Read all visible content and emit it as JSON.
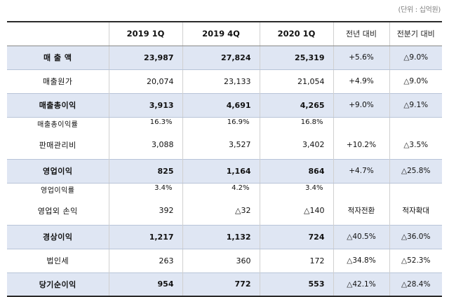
{
  "unit_note": "(단위 : 십억원)",
  "header": [
    "",
    "2019 1Q",
    "2019 4Q",
    "2020 1Q",
    "전년 대비",
    "전분기 대비"
  ],
  "rows": [
    {
      "label": "매 출 액",
      "v2019q1": "23,987",
      "v2019q4": "27,824",
      "v2020q1": "25,319",
      "yoy": "+5.6%",
      "qoq": "△9.0%"
    },
    {
      "label": "매출원가",
      "v2019q1": "20,074",
      "v2019q4": "23,133",
      "v2020q1": "21,054",
      "yoy": "+4.9%",
      "qoq": "△9.0%"
    },
    {
      "label": "매출총이익",
      "v2019q1": "3,913",
      "v2019q4": "4,691",
      "v2020q1": "4,265",
      "yoy": "+9.0%",
      "qoq": "△9.1%"
    },
    {
      "label": "매출총이익률",
      "v2019q1": "16.3%",
      "v2019q4": "16.9%",
      "v2020q1": "16.8%",
      "yoy": "",
      "qoq": ""
    },
    {
      "label": "판매관리비",
      "v2019q1": "3,088",
      "v2019q4": "3,527",
      "v2020q1": "3,402",
      "yoy": "+10.2%",
      "qoq": "△3.5%"
    },
    {
      "label": "영업이익",
      "v2019q1": "825",
      "v2019q4": "1,164",
      "v2020q1": "864",
      "yoy": "+4.7%",
      "qoq": "△25.8%"
    },
    {
      "label": "영업이익률",
      "v2019q1": "3.4%",
      "v2019q4": "4.2%",
      "v2020q1": "3.4%",
      "yoy": "",
      "qoq": ""
    },
    {
      "label": "영업외 손익",
      "v2019q1": "392",
      "v2019q4": "△32",
      "v2020q1": "△140",
      "yoy": "적자전환",
      "qoq": "적자확대"
    },
    {
      "label": "경상이익",
      "v2019q1": "1,217",
      "v2019q4": "1,132",
      "v2020q1": "724",
      "yoy": "△40.5%",
      "qoq": "△36.0%"
    },
    {
      "label": "법인세",
      "v2019q1": "263",
      "v2019q4": "360",
      "v2020q1": "172",
      "yoy": "△34.8%",
      "qoq": "△52.3%"
    },
    {
      "label": "당기순이익",
      "v2019q1": "954",
      "v2019q4": "772",
      "v2020q1": "553",
      "yoy": "△42.1%",
      "qoq": "△28.4%"
    }
  ],
  "colors": {
    "highlight_row": "#dfe6f3",
    "rule": "#2a2a2a",
    "unit_text": "#808080"
  }
}
